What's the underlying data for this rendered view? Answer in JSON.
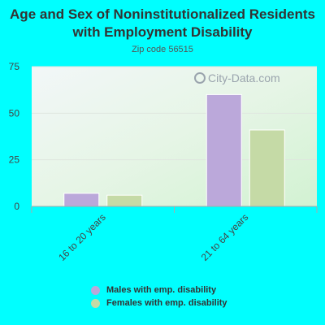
{
  "title": "Age and Sex of Noninstitutionalized Residents with Employment Disability",
  "subtitle": "Zip code 56515",
  "watermark": "City-Data.com",
  "colors": {
    "background": "#00FFFF",
    "males": "#BBA8DA",
    "females": "#C5DAA6"
  },
  "chart_data": {
    "type": "bar",
    "categories": [
      "16 to 20 years",
      "21 to 64 years"
    ],
    "series": [
      {
        "name": "Males with emp. disability",
        "values": [
          7,
          60
        ]
      },
      {
        "name": "Females with emp. disability",
        "values": [
          6,
          41
        ]
      }
    ],
    "yticks": [
      0,
      25,
      50,
      75
    ],
    "ylim": [
      0,
      75
    ],
    "legend_position": "bottom"
  }
}
